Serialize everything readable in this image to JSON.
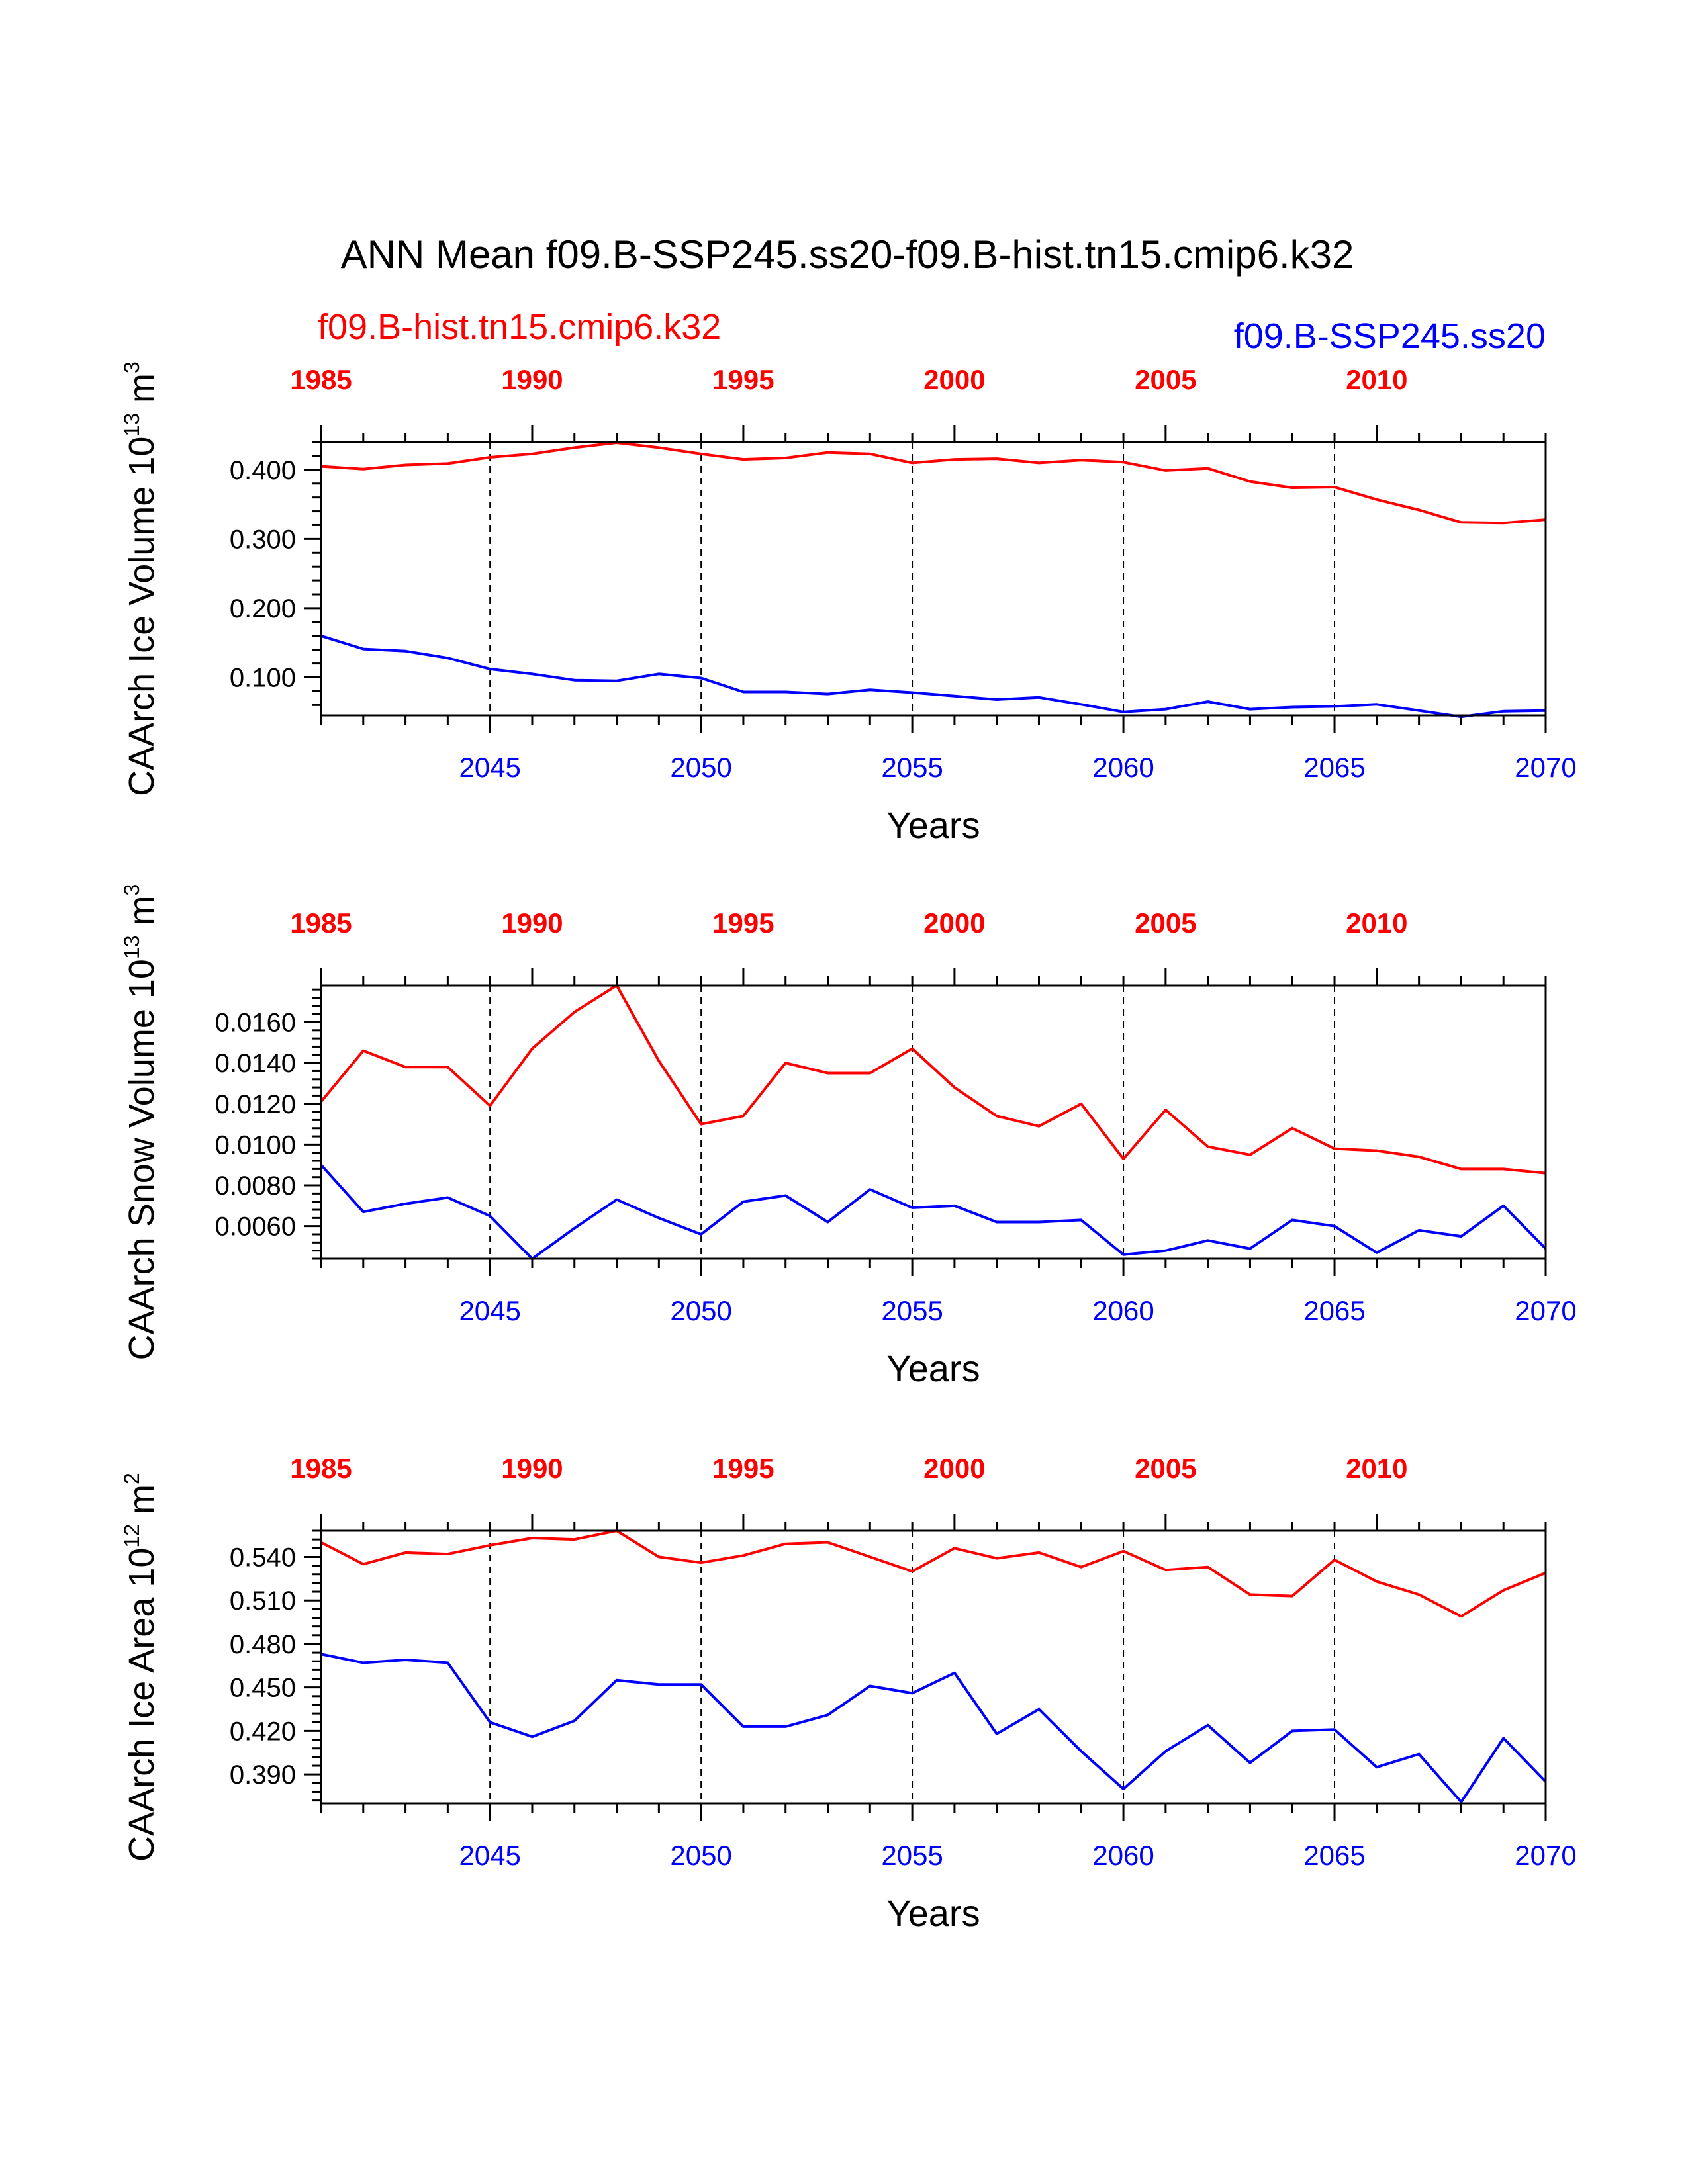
{
  "title": "ANN Mean f09.B-SSP245.ss20-f09.B-hist.tn15.cmip6.k32",
  "legend": {
    "left": "f09.B-hist.tn15.cmip6.k32",
    "right": "f09.B-SSP245.ss20"
  },
  "colors": {
    "hist": "#ff0000",
    "ssp": "#0000ff",
    "axis": "#000000"
  },
  "chart_data": [
    {
      "type": "line",
      "ylabel_main": "CAArch Ice Volume 10",
      "ylabel_exp": "13",
      "ylabel_unit": " m",
      "ylabel_unit_exp": "3",
      "xlabel": "Years",
      "ylim": [
        0.045,
        0.44
      ],
      "yticks": [
        0.1,
        0.2,
        0.3,
        0.4
      ],
      "ytick_labels": [
        "0.100",
        "0.200",
        "0.300",
        "0.400"
      ],
      "x_bottom_range": [
        2041,
        2070
      ],
      "x_bottom_ticks": [
        "2045",
        "2050",
        "2055",
        "2060",
        "2065",
        "2070"
      ],
      "x_top_range": [
        1985,
        2014
      ],
      "x_top_ticks": [
        "1985",
        "1990",
        "1995",
        "2000",
        "2005",
        "2010"
      ],
      "series": [
        {
          "name": "f09.B-hist.tn15.cmip6.k32",
          "color": "#ff0000",
          "x_axis": "top",
          "x": [
            1985,
            1986,
            1987,
            1988,
            1989,
            1990,
            1991,
            1992,
            1993,
            1994,
            1995,
            1996,
            1997,
            1998,
            1999,
            2000,
            2001,
            2002,
            2003,
            2004,
            2005,
            2006,
            2007,
            2008,
            2009,
            2010,
            2011,
            2012,
            2013,
            2014
          ],
          "values": [
            0.405,
            0.401,
            0.407,
            0.409,
            0.418,
            0.423,
            0.432,
            0.439,
            0.432,
            0.423,
            0.415,
            0.417,
            0.425,
            0.423,
            0.41,
            0.415,
            0.416,
            0.41,
            0.414,
            0.411,
            0.399,
            0.402,
            0.383,
            0.374,
            0.375,
            0.357,
            0.342,
            0.324,
            0.323,
            0.328
          ]
        },
        {
          "name": "f09.B-SSP245.ss20",
          "color": "#0000ff",
          "x_axis": "bottom",
          "x": [
            2041,
            2042,
            2043,
            2044,
            2045,
            2046,
            2047,
            2048,
            2049,
            2050,
            2051,
            2052,
            2053,
            2054,
            2055,
            2056,
            2057,
            2058,
            2059,
            2060,
            2061,
            2062,
            2063,
            2064,
            2065,
            2066,
            2067,
            2068,
            2069,
            2070
          ],
          "values": [
            0.16,
            0.141,
            0.138,
            0.128,
            0.112,
            0.105,
            0.096,
            0.095,
            0.105,
            0.099,
            0.079,
            0.079,
            0.076,
            0.082,
            0.078,
            0.073,
            0.068,
            0.071,
            0.061,
            0.05,
            0.054,
            0.065,
            0.054,
            0.057,
            0.058,
            0.061,
            0.052,
            0.043,
            0.051,
            0.052
          ]
        }
      ]
    },
    {
      "type": "line",
      "ylabel_main": "CAArch Snow Volume 10",
      "ylabel_exp": "13",
      "ylabel_unit": " m",
      "ylabel_unit_exp": "3",
      "xlabel": "Years",
      "ylim": [
        0.0044,
        0.0178
      ],
      "yticks": [
        0.006,
        0.008,
        0.01,
        0.012,
        0.014,
        0.016
      ],
      "ytick_labels": [
        "0.0060",
        "0.0080",
        "0.0100",
        "0.0120",
        "0.0140",
        "0.0160"
      ],
      "x_bottom_range": [
        2041,
        2070
      ],
      "x_bottom_ticks": [
        "2045",
        "2050",
        "2055",
        "2060",
        "2065",
        "2070"
      ],
      "x_top_range": [
        1985,
        2014
      ],
      "x_top_ticks": [
        "1985",
        "1990",
        "1995",
        "2000",
        "2005",
        "2010"
      ],
      "series": [
        {
          "name": "f09.B-hist.tn15.cmip6.k32",
          "color": "#ff0000",
          "x_axis": "top",
          "x": [
            1985,
            1986,
            1987,
            1988,
            1989,
            1990,
            1991,
            1992,
            1993,
            1994,
            1995,
            1996,
            1997,
            1998,
            1999,
            2000,
            2001,
            2002,
            2003,
            2004,
            2005,
            2006,
            2007,
            2008,
            2009,
            2010,
            2011,
            2012,
            2013,
            2014
          ],
          "values": [
            0.0121,
            0.0146,
            0.0138,
            0.0138,
            0.0119,
            0.0147,
            0.0165,
            0.0178,
            0.0141,
            0.011,
            0.0114,
            0.014,
            0.0135,
            0.0135,
            0.0147,
            0.0128,
            0.0114,
            0.0109,
            0.012,
            0.0093,
            0.0117,
            0.0099,
            0.0095,
            0.0108,
            0.0098,
            0.0097,
            0.0094,
            0.0088,
            0.0088,
            0.0086
          ]
        },
        {
          "name": "f09.B-SSP245.ss20",
          "color": "#0000ff",
          "x_axis": "bottom",
          "x": [
            2041,
            2042,
            2043,
            2044,
            2045,
            2046,
            2047,
            2048,
            2049,
            2050,
            2051,
            2052,
            2053,
            2054,
            2055,
            2056,
            2057,
            2058,
            2059,
            2060,
            2061,
            2062,
            2063,
            2064,
            2065,
            2066,
            2067,
            2068,
            2069,
            2070
          ],
          "values": [
            0.009,
            0.0067,
            0.0071,
            0.0074,
            0.0065,
            0.0044,
            0.0059,
            0.0073,
            0.0064,
            0.0056,
            0.0072,
            0.0075,
            0.0062,
            0.0078,
            0.0069,
            0.007,
            0.0062,
            0.0062,
            0.0063,
            0.0046,
            0.0048,
            0.0053,
            0.0049,
            0.0063,
            0.006,
            0.0047,
            0.0058,
            0.0055,
            0.007,
            0.0049
          ]
        }
      ]
    },
    {
      "type": "line",
      "ylabel_main": "CAArch Ice Area 10",
      "ylabel_exp": "12",
      "ylabel_unit": " m",
      "ylabel_unit_exp": "2",
      "xlabel": "Years",
      "ylim": [
        0.37,
        0.558
      ],
      "yticks": [
        0.39,
        0.42,
        0.45,
        0.48,
        0.51,
        0.54
      ],
      "ytick_labels": [
        "0.390",
        "0.420",
        "0.450",
        "0.480",
        "0.510",
        "0.540"
      ],
      "x_bottom_range": [
        2041,
        2070
      ],
      "x_bottom_ticks": [
        "2045",
        "2050",
        "2055",
        "2060",
        "2065",
        "2070"
      ],
      "x_top_range": [
        1985,
        2014
      ],
      "x_top_ticks": [
        "1985",
        "1990",
        "1995",
        "2000",
        "2005",
        "2010"
      ],
      "series": [
        {
          "name": "f09.B-hist.tn15.cmip6.k32",
          "color": "#ff0000",
          "x_axis": "top",
          "x": [
            1985,
            1986,
            1987,
            1988,
            1989,
            1990,
            1991,
            1992,
            1993,
            1994,
            1995,
            1996,
            1997,
            1998,
            1999,
            2000,
            2001,
            2002,
            2003,
            2004,
            2005,
            2006,
            2007,
            2008,
            2009,
            2010,
            2011,
            2012,
            2013,
            2014
          ],
          "values": [
            0.55,
            0.535,
            0.543,
            0.542,
            0.548,
            0.553,
            0.552,
            0.558,
            0.54,
            0.536,
            0.541,
            0.549,
            0.55,
            0.54,
            0.53,
            0.546,
            0.539,
            0.543,
            0.533,
            0.544,
            0.531,
            0.533,
            0.514,
            0.513,
            0.538,
            0.523,
            0.514,
            0.499,
            0.517,
            0.529
          ]
        },
        {
          "name": "f09.B-SSP245.ss20",
          "color": "#0000ff",
          "x_axis": "bottom",
          "x": [
            2041,
            2042,
            2043,
            2044,
            2045,
            2046,
            2047,
            2048,
            2049,
            2050,
            2051,
            2052,
            2053,
            2054,
            2055,
            2056,
            2057,
            2058,
            2059,
            2060,
            2061,
            2062,
            2063,
            2064,
            2065,
            2066,
            2067,
            2068,
            2069,
            2070
          ],
          "values": [
            0.473,
            0.467,
            0.469,
            0.467,
            0.426,
            0.416,
            0.427,
            0.455,
            0.452,
            0.452,
            0.423,
            0.423,
            0.431,
            0.451,
            0.446,
            0.46,
            0.418,
            0.435,
            0.406,
            0.38,
            0.406,
            0.424,
            0.398,
            0.42,
            0.421,
            0.395,
            0.404,
            0.371,
            0.415,
            0.385
          ]
        }
      ]
    }
  ]
}
